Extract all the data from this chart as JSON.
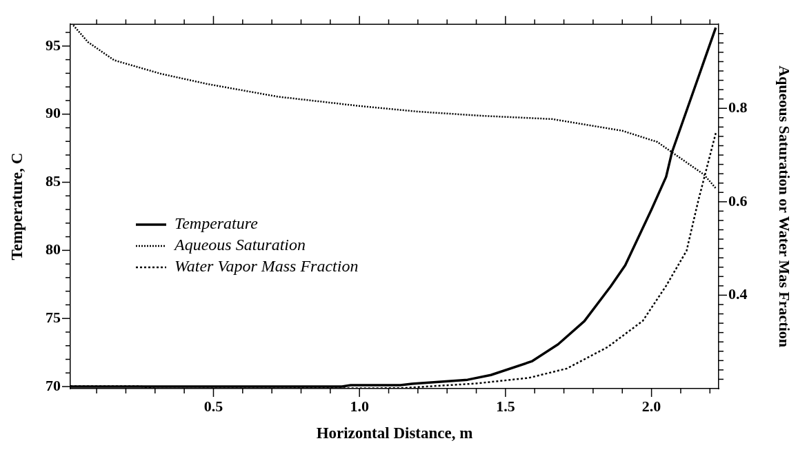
{
  "chart_data": {
    "type": "line",
    "xlabel": "Horizontal Distance, m",
    "ylabel": "Temperature, C",
    "y2label": "Aqueous Saturation or Water Mas Fraction",
    "xlim": [
      0.01,
      2.23
    ],
    "ylim": [
      69.85,
      96.6
    ],
    "y2lim": [
      0.2,
      0.98
    ],
    "xticks": [
      {
        "value": 0.1,
        "label": null
      },
      {
        "value": 0.2,
        "label": null
      },
      {
        "value": 0.3,
        "label": null
      },
      {
        "value": 0.4,
        "label": null
      },
      {
        "value": 0.5,
        "label": "0.5"
      },
      {
        "value": 0.6,
        "label": null
      },
      {
        "value": 0.7,
        "label": null
      },
      {
        "value": 0.8,
        "label": null
      },
      {
        "value": 0.9,
        "label": null
      },
      {
        "value": 1.0,
        "label": "1.0"
      },
      {
        "value": 1.1,
        "label": null
      },
      {
        "value": 1.2,
        "label": null
      },
      {
        "value": 1.3,
        "label": null
      },
      {
        "value": 1.4,
        "label": null
      },
      {
        "value": 1.5,
        "label": "1.5"
      },
      {
        "value": 1.6,
        "label": null
      },
      {
        "value": 1.7,
        "label": null
      },
      {
        "value": 1.8,
        "label": null
      },
      {
        "value": 1.9,
        "label": null
      },
      {
        "value": 2.0,
        "label": "2.0"
      },
      {
        "value": 2.1,
        "label": null
      },
      {
        "value": 2.2,
        "label": null
      }
    ],
    "yticks": [
      70,
      {
        "value": 71,
        "label": null
      },
      {
        "value": 72,
        "label": null
      },
      {
        "value": 73,
        "label": null
      },
      {
        "value": 74,
        "label": null
      },
      75,
      {
        "value": 76,
        "label": null
      },
      {
        "value": 77,
        "label": null
      },
      {
        "value": 78,
        "label": null
      },
      {
        "value": 79,
        "label": null
      },
      80,
      {
        "value": 81,
        "label": null
      },
      {
        "value": 82,
        "label": null
      },
      {
        "value": 83,
        "label": null
      },
      {
        "value": 84,
        "label": null
      },
      85,
      {
        "value": 86,
        "label": null
      },
      {
        "value": 87,
        "label": null
      },
      {
        "value": 88,
        "label": null
      },
      {
        "value": 89,
        "label": null
      },
      90,
      {
        "value": 91,
        "label": null
      },
      {
        "value": 92,
        "label": null
      },
      {
        "value": 93,
        "label": null
      },
      {
        "value": 94,
        "label": null
      },
      95,
      {
        "value": 96,
        "label": null
      }
    ],
    "y2ticks": [
      {
        "value": 0.22,
        "label": null
      },
      {
        "value": 0.24,
        "label": null
      },
      {
        "value": 0.26,
        "label": null
      },
      {
        "value": 0.28,
        "label": null
      },
      {
        "value": 0.3,
        "label": null
      },
      {
        "value": 0.32,
        "label": null
      },
      {
        "value": 0.34,
        "label": null
      },
      {
        "value": 0.36,
        "label": null
      },
      {
        "value": 0.38,
        "label": null
      },
      0.4,
      {
        "value": 0.42,
        "label": null
      },
      {
        "value": 0.44,
        "label": null
      },
      {
        "value": 0.46,
        "label": null
      },
      {
        "value": 0.48,
        "label": null
      },
      {
        "value": 0.5,
        "label": null
      },
      {
        "value": 0.52,
        "label": null
      },
      {
        "value": 0.54,
        "label": null
      },
      {
        "value": 0.56,
        "label": null
      },
      {
        "value": 0.58,
        "label": null
      },
      0.6,
      {
        "value": 0.62,
        "label": null
      },
      {
        "value": 0.64,
        "label": null
      },
      {
        "value": 0.66,
        "label": null
      },
      {
        "value": 0.68,
        "label": null
      },
      {
        "value": 0.7,
        "label": null
      },
      {
        "value": 0.72,
        "label": null
      },
      {
        "value": 0.74,
        "label": null
      },
      {
        "value": 0.76,
        "label": null
      },
      {
        "value": 0.78,
        "label": null
      },
      0.8,
      {
        "value": 0.82,
        "label": null
      },
      {
        "value": 0.84,
        "label": null
      },
      {
        "value": 0.86,
        "label": null
      },
      {
        "value": 0.88,
        "label": null
      },
      {
        "value": 0.9,
        "label": null
      },
      {
        "value": 0.92,
        "label": null
      },
      {
        "value": 0.94,
        "label": null
      },
      {
        "value": 0.96,
        "label": null
      }
    ],
    "grid": false,
    "legend": "left",
    "series": [
      {
        "name": "Temperature",
        "color": "#000000",
        "line_style": "solid",
        "x": [
          0.01,
          0.5,
          0.94,
          0.97,
          1.14,
          1.18,
          1.37,
          1.45,
          1.59,
          1.68,
          1.77,
          1.86,
          1.91,
          2.0,
          2.05,
          2.07,
          2.22
        ],
        "values": [
          70.0,
          70.0,
          70.0,
          70.1,
          70.1,
          70.2,
          70.5,
          70.85,
          71.85,
          73.1,
          74.8,
          77.35,
          78.9,
          83.0,
          85.4,
          87.2,
          96.35
        ]
      },
      {
        "name": "Aqueous Saturation",
        "color": "#000000",
        "line_style": "dotted",
        "axis": "y2",
        "x": [
          0.02,
          0.07,
          0.16,
          0.32,
          0.48,
          0.72,
          1.0,
          1.2,
          1.42,
          1.66,
          1.9,
          2.02,
          2.07,
          2.18,
          2.22
        ],
        "values": [
          0.978,
          0.942,
          0.903,
          0.874,
          0.852,
          0.825,
          0.805,
          0.793,
          0.784,
          0.777,
          0.752,
          0.728,
          0.706,
          0.658,
          0.629
        ]
      },
      {
        "name": "Water Vapor Mass Fraction",
        "color": "#000000",
        "line_style": "dashed",
        "axis": "y2",
        "x": [
          0.01,
          0.25,
          0.3,
          1.14,
          1.4,
          1.58,
          1.71,
          1.85,
          1.97,
          2.05,
          2.12,
          2.16,
          2.22
        ],
        "values": [
          0.205,
          0.205,
          0.2,
          0.201,
          0.211,
          0.223,
          0.243,
          0.289,
          0.345,
          0.42,
          0.495,
          0.602,
          0.747
        ]
      }
    ]
  }
}
